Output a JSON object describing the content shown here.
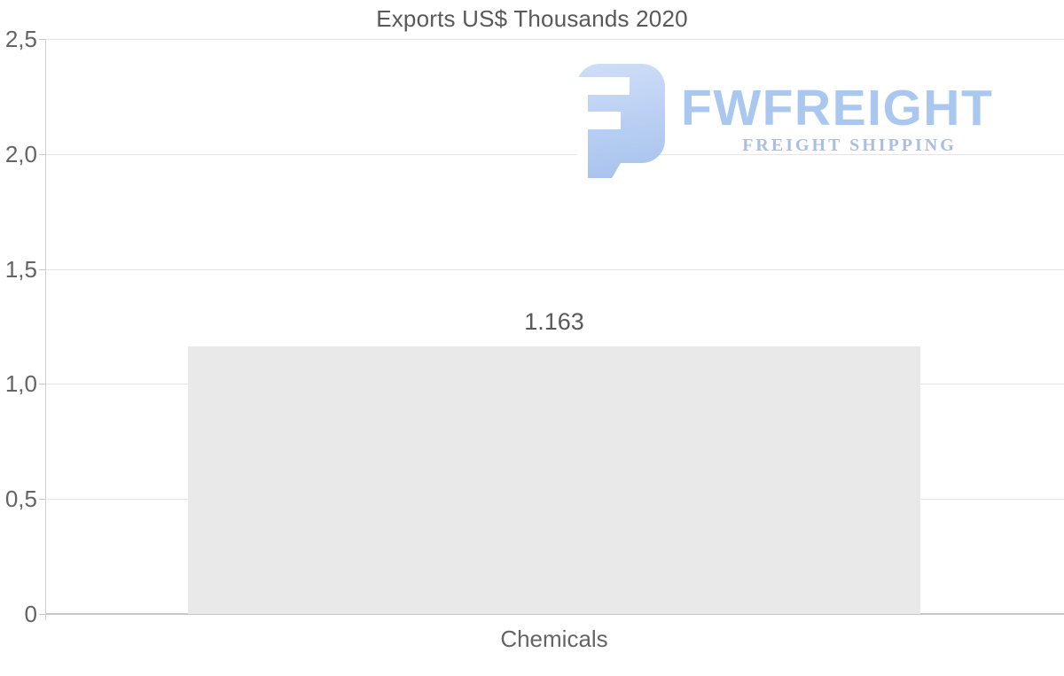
{
  "chart_data": {
    "type": "bar",
    "title": "Exports US$ Thousands 2020",
    "categories": [
      "Chemicals"
    ],
    "values": [
      1.163
    ],
    "value_labels": [
      "1.163"
    ],
    "y_ticks": [
      "2,5",
      "2,0",
      "1,5",
      "1,0",
      "0,5",
      "0"
    ],
    "ylim": [
      0,
      2.5
    ],
    "grid": true,
    "legend_position": "none",
    "bar_color": "#e9e9e9",
    "grid_color": "#e5e5e5",
    "axis_color": "#c7c7c7",
    "text_color": "#595959"
  },
  "watermark": {
    "brand": "FWFREIGHT",
    "tagline": "FREIGHT SHIPPING",
    "icon": "fwfreight-logo-icon",
    "brand_color": "#aac7f0",
    "tagline_color": "#a9bde8"
  }
}
